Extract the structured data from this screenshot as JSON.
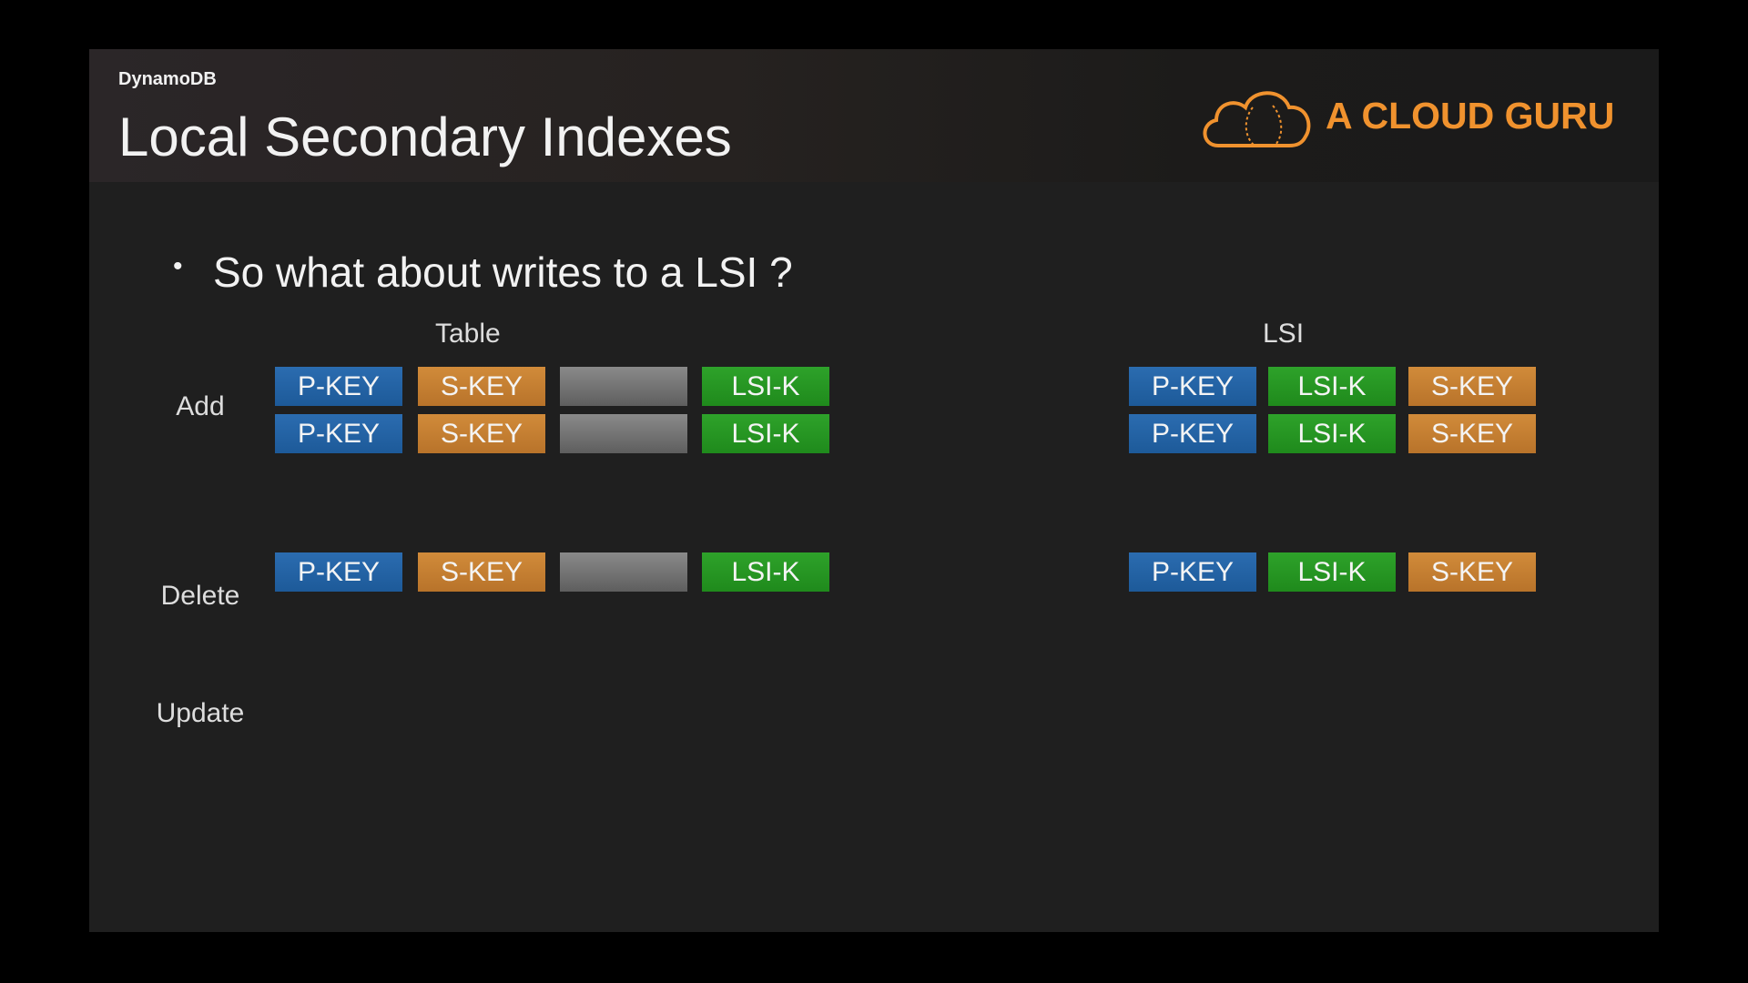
{
  "header": {
    "section": "DynamoDB",
    "title": "Local Secondary Indexes",
    "brand": "A CLOUD GURU"
  },
  "bullet": "So what about writes to a LSI ?",
  "columns": {
    "table": "Table",
    "lsi": "LSI"
  },
  "operations": [
    {
      "label": "Add",
      "table_rows": [
        [
          "P-KEY",
          "S-KEY",
          "LSI-K"
        ],
        [
          "P-KEY",
          "S-KEY",
          "LSI-K"
        ]
      ],
      "lsi_rows": [
        [
          "P-KEY",
          "LSI-K",
          "S-KEY"
        ],
        [
          "P-KEY",
          "LSI-K",
          "S-KEY"
        ]
      ]
    },
    {
      "label": "Delete",
      "table_rows": [
        [
          "P-KEY",
          "S-KEY",
          "LSI-K"
        ]
      ],
      "lsi_rows": [
        [
          "P-KEY",
          "LSI-K",
          "S-KEY"
        ]
      ]
    },
    {
      "label": "Update"
    }
  ]
}
